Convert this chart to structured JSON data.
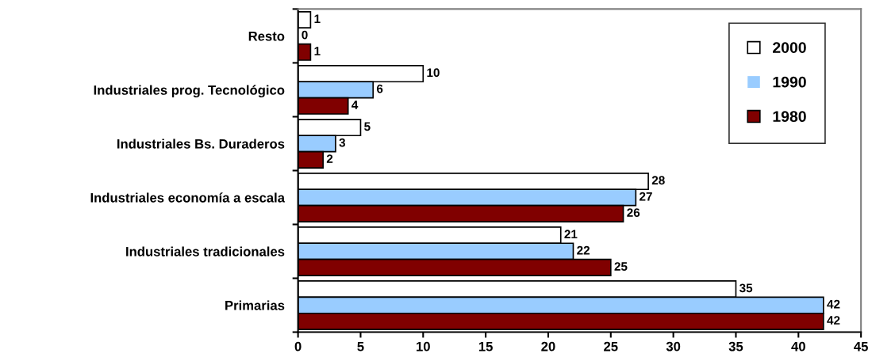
{
  "chart_data": {
    "type": "bar",
    "orientation": "horizontal",
    "categories": [
      "Resto",
      "Industriales prog. Tecnológico",
      "Industriales Bs. Duraderos",
      "Industriales economía a escala",
      "Industriales tradicionales",
      "Primarias"
    ],
    "series": [
      {
        "name": "2000",
        "color": "#ffffff",
        "values": [
          1,
          10,
          5,
          28,
          21,
          35
        ]
      },
      {
        "name": "1990",
        "color": "#99ccff",
        "values": [
          0,
          6,
          3,
          27,
          22,
          42
        ]
      },
      {
        "name": "1980",
        "color": "#800000",
        "values": [
          1,
          4,
          2,
          26,
          25,
          42
        ]
      }
    ],
    "xlim": [
      0,
      45
    ],
    "xticks": [
      0,
      5,
      10,
      15,
      20,
      25,
      30,
      35,
      40,
      45
    ],
    "grid": false,
    "legend": "top right",
    "data_labels": true
  }
}
